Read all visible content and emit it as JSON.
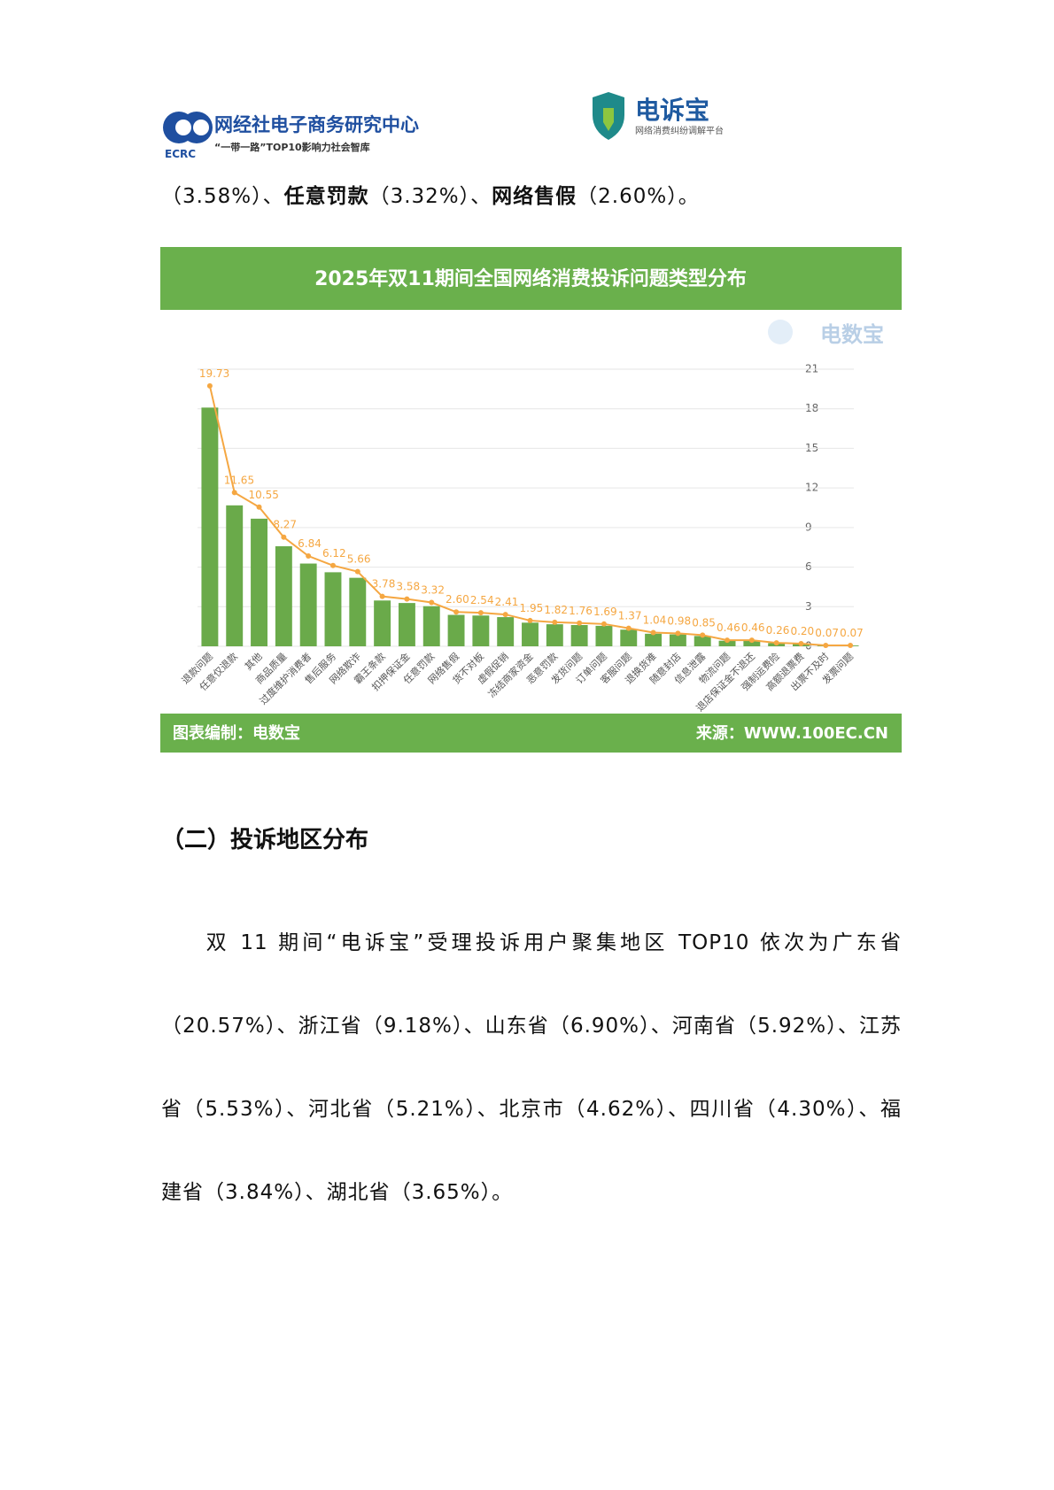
{
  "header": {
    "left_title": "网经社电子商务研究中心",
    "left_abbr": "ECRC",
    "left_subtitle": "“一带一路”TOP10影响力社会智库",
    "right_title": "电诉宝",
    "right_subtitle": "网络消费纠纷调解平台"
  },
  "paragraphs": [
    {
      "runs": [
        {
          "text": "（3.58%）、",
          "bold": false
        },
        {
          "text": "任意罚款",
          "bold": true
        },
        {
          "text": "（3.32%）、",
          "bold": false
        },
        {
          "text": "网络售假",
          "bold": true
        },
        {
          "text": "（2.60%）。",
          "bold": false
        }
      ]
    }
  ],
  "heading": "（二）投诉地区分布",
  "body": "双 11 期间“电诉宝”受理投诉用户聚集地区 TOP10 依次为广东省（20.57%）、浙江省（9.18%）、山东省（6.90%）、河南省（5.92%）、江苏省（5.53%）、河北省（5.21%）、北京市（4.62%）、四川省（4.30%）、福建省（3.84%）、湖北省（3.65%）。",
  "chart_data": {
    "type": "bar",
    "title": "2025年双11期间全国网络消费投诉问题类型分布",
    "watermark": "电数宝",
    "footer_left": "图表编制：电数宝",
    "footer_right": "来源：WWW.100EC.CN",
    "categories": [
      "退款问题",
      "任意仅退款",
      "其他",
      "商品质量",
      "过度维护消费者",
      "售后服务",
      "网络欺诈",
      "霸王条款",
      "扣押保证金",
      "任意罚款",
      "网络售假",
      "货不对板",
      "虚假促销",
      "冻结商家资金",
      "恶意罚款",
      "发货问题",
      "订单问题",
      "客服问题",
      "退换货难",
      "随意封店",
      "信息泄露",
      "物流问题",
      "退店保证金不退还",
      "强制运费险",
      "高额退票费",
      "出票不及时",
      "发票问题"
    ],
    "series": [
      {
        "type": "bar",
        "color": "#6aaa4a",
        "values": [
          18.09,
          10.68,
          9.67,
          7.58,
          6.27,
          5.61,
          5.19,
          3.47,
          3.28,
          3.04,
          2.38,
          2.33,
          2.21,
          1.79,
          1.67,
          1.61,
          1.55,
          1.26,
          0.95,
          0.9,
          0.78,
          0.42,
          0.42,
          0.24,
          0.18,
          0.06,
          0.06
        ]
      },
      {
        "type": "line",
        "color": "#f5a742",
        "values": [
          19.73,
          11.65,
          10.55,
          8.27,
          6.84,
          6.12,
          5.66,
          3.78,
          3.58,
          3.32,
          2.6,
          2.54,
          2.41,
          1.95,
          1.82,
          1.76,
          1.69,
          1.37,
          1.04,
          0.98,
          0.85,
          0.46,
          0.46,
          0.26,
          0.2,
          0.07,
          0.07
        ],
        "value_labels": [
          "19.73",
          "11.65",
          "10.55",
          "8.27",
          "6.84",
          "6.12",
          "5.66",
          "3.78",
          "3.58",
          "3.32",
          "2.60",
          "2.54",
          "2.41",
          "1.95",
          "1.82",
          "1.76",
          "1.69",
          "1.37",
          "1.04",
          "0.98",
          "0.85",
          "0.46",
          "0.46",
          "0.26",
          "0.20",
          "0.07",
          "0.07"
        ]
      }
    ],
    "ylim": [
      0,
      21
    ],
    "yticks": [
      0,
      3,
      6,
      9,
      12,
      15,
      18,
      21
    ],
    "grid": true,
    "header_color": "#6ab04c"
  }
}
